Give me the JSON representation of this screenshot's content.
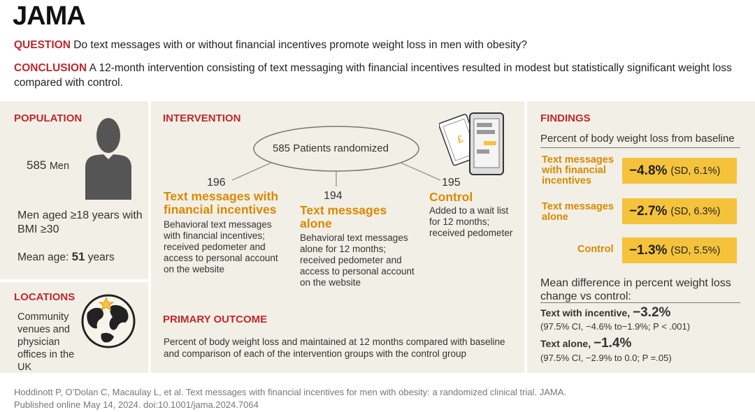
{
  "header": {
    "logo": "JAMA",
    "question_label": "QUESTION",
    "question_text": "Do text messages with or without financial incentives promote weight loss in men with obesity?",
    "conclusion_label": "CONCLUSION",
    "conclusion_text": "A 12-month intervention consisting of text messaging with financial incentives resulted in modest but statistically significant weight loss compared with control."
  },
  "population": {
    "title": "POPULATION",
    "count": "585",
    "count_label": "Men",
    "criteria": "Men aged ≥18 years with BMI ≥30",
    "mean_age_label": "Mean age:",
    "mean_age_value": "51",
    "mean_age_unit": "years"
  },
  "locations": {
    "title": "LOCATIONS",
    "text": "Community venues and physician offices in the UK"
  },
  "intervention": {
    "title": "INTERVENTION",
    "randomized": "585 Patients randomized",
    "groups": [
      {
        "n": "196",
        "name": "Text messages with financial incentives",
        "desc": "Behavioral text messages with financial incentives; received pedometer and access to personal account on the website"
      },
      {
        "n": "194",
        "name": "Text messages alone",
        "desc": "Behavioral text messages alone for 12 months; received pedometer and access to personal account on the website"
      },
      {
        "n": "195",
        "name": "Control",
        "desc": "Added to a wait list for 12 months; received pedometer"
      }
    ]
  },
  "primary_outcome": {
    "title": "PRIMARY OUTCOME",
    "text": "Percent of body weight loss and maintained at 12 months compared with baseline and comparison of each of the intervention groups with the control group"
  },
  "findings": {
    "title": "FINDINGS",
    "subtitle": "Percent of body weight loss from baseline",
    "rows": [
      {
        "label": "Text messages with financial incentives",
        "value": "−4.8%",
        "sd": "(SD, 6.1%)"
      },
      {
        "label": "Text messages alone",
        "value": "−2.7%",
        "sd": "(SD, 6.3%)"
      },
      {
        "label": "Control",
        "value": "−1.3%",
        "sd": "(SD, 5.5%)"
      }
    ],
    "mean_diff_title": "Mean difference in percent weight loss change vs control:",
    "diffs": [
      {
        "label": "Text with incentive,",
        "value": "−3.2%",
        "ci": "(97.5% CI, −4.6% to−1.9%; P < .001)"
      },
      {
        "label": "Text alone,",
        "value": "−1.4%",
        "ci": "(97.5% CI, −2.9% to 0.0; P =.05)"
      }
    ]
  },
  "citation": {
    "line1": "Hoddinott P, O’Dolan C, Macaulay L, et al. Text messages with financial incentives for men with obesity: a randomized clinical trial. JAMA.",
    "line2": "Published online May 14, 2024. doi:10.1001/jama.2024.7064"
  },
  "colors": {
    "accent_red": "#c0282e",
    "accent_orange": "#d98a00",
    "highlight_yellow": "#f5c33b",
    "panel_bg": "#f2efe6"
  }
}
